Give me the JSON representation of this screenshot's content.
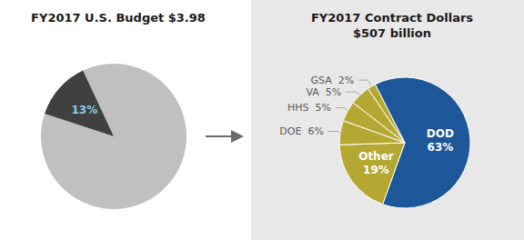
{
  "chart_data": [
    {
      "type": "pie",
      "title": "FY2017 U.S. Budget $3.98",
      "values": [
        87,
        13
      ],
      "colors": [
        "#c0c0c0",
        "#404040"
      ],
      "value_labels": [
        null,
        "13%"
      ]
    },
    {
      "type": "pie",
      "title": "FY2017 Contract Dollars\n$507 billion",
      "categories": [
        "DOD",
        "Other",
        "DOE",
        "HHS",
        "VA",
        "GSA"
      ],
      "values": [
        63,
        19,
        6,
        5,
        5,
        2
      ],
      "colors": [
        "#1e5799",
        "#b5a832",
        "#b5a832",
        "#b5a832",
        "#b5a832",
        "#b5a832"
      ],
      "value_labels": [
        "63%",
        "19%",
        "6%",
        "5%",
        "5%",
        "2%"
      ]
    }
  ]
}
